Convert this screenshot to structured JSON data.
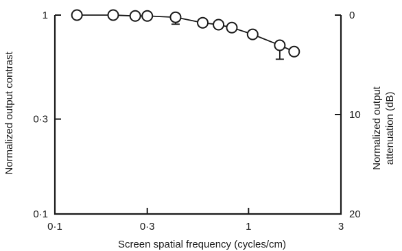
{
  "chart_data": {
    "type": "line",
    "xlabel": "Screen spatial frequency (cycles/cm)",
    "ylabel": "Normalized output contrast",
    "y2label_lines": [
      "Normalized output",
      "attenuation (dB)"
    ],
    "x_scale": "log",
    "y_scale": "log",
    "xlim": [
      0.1,
      3
    ],
    "ylim": [
      0.1,
      1
    ],
    "y2lim": [
      20,
      0
    ],
    "x_ticks": [
      {
        "value": 0.1,
        "label": "0·1"
      },
      {
        "value": 0.3,
        "label": "0·3"
      },
      {
        "value": 1,
        "label": "1"
      },
      {
        "value": 3,
        "label": "3"
      }
    ],
    "y_ticks": [
      {
        "value": 1,
        "label": "1"
      },
      {
        "value": 0.3,
        "label": "0·3"
      },
      {
        "value": 0.1,
        "label": "0·1"
      }
    ],
    "y2_ticks": [
      {
        "value": 0,
        "label": "0"
      },
      {
        "value": 10,
        "label": "10"
      },
      {
        "value": 20,
        "label": "20"
      }
    ],
    "series": [
      {
        "x": [
          0.13,
          0.2,
          0.26,
          0.3,
          0.42,
          0.58,
          0.7,
          0.82,
          1.05,
          1.45,
          1.72
        ],
        "y": [
          1.0,
          1.0,
          0.99,
          0.99,
          0.975,
          0.915,
          0.895,
          0.865,
          0.8,
          0.705,
          0.655
        ],
        "error_low": [
          0,
          0,
          0,
          0,
          0.9,
          0,
          0,
          0,
          0,
          0.6,
          0
        ],
        "error_high": [
          0,
          0,
          0,
          0,
          0.995,
          0,
          0,
          0,
          0,
          0.715,
          0
        ]
      }
    ]
  }
}
